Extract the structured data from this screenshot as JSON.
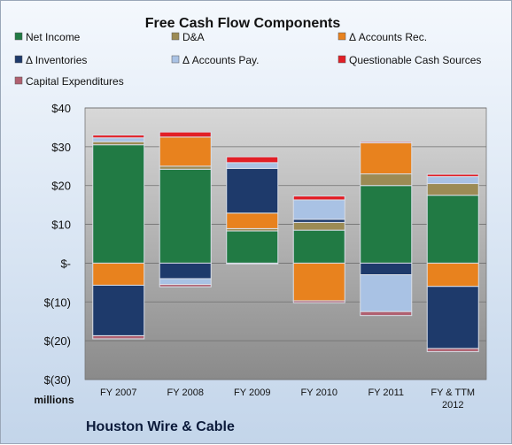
{
  "chart_data": {
    "type": "bar",
    "stacked": true,
    "title": "Free Cash Flow Components",
    "ylabel": "millions",
    "footer": "Houston Wire & Cable",
    "ylim": [
      -30,
      40
    ],
    "y_ticks": [
      "$40",
      "$30",
      "$20",
      "$10",
      "$-",
      "$(10)",
      "$(20)",
      "$(30)"
    ],
    "categories": [
      "FY 2007",
      "FY 2008",
      "FY 2009",
      "FY 2010",
      "FY 2011",
      "FY & TTM 2012"
    ],
    "grid": true,
    "legend_position": "top",
    "series": [
      {
        "name": "Net Income",
        "color": "#217a44",
        "values": [
          30.5,
          24.2,
          8.3,
          8.5,
          20.0,
          17.5
        ]
      },
      {
        "name": "D&A",
        "color": "#9c8b55",
        "values": [
          0.8,
          0.8,
          0.6,
          2.0,
          3.0,
          3.0
        ]
      },
      {
        "name": "Δ Accounts Rec.",
        "color": "#e8821e",
        "values": [
          -5.7,
          7.5,
          4.0,
          -9.7,
          8.0,
          -6.0
        ]
      },
      {
        "name": "Δ Inventories",
        "color": "#1e3a6b",
        "values": [
          -13.0,
          -4.0,
          11.5,
          0.8,
          -3.0,
          -16.0
        ]
      },
      {
        "name": "Δ Accounts Pay.",
        "color": "#a9c2e4",
        "values": [
          1.0,
          -1.5,
          1.5,
          5.0,
          -9.5,
          1.8
        ]
      },
      {
        "name": "Questionable Cash Sources",
        "color": "#e21f26",
        "values": [
          0.7,
          1.3,
          1.5,
          1.0,
          0.3,
          0.6
        ]
      },
      {
        "name": "Capital Expenditures",
        "color": "#b06070",
        "values": [
          -0.8,
          -0.6,
          -0.2,
          -0.5,
          -1.0,
          -0.8
        ]
      }
    ]
  }
}
